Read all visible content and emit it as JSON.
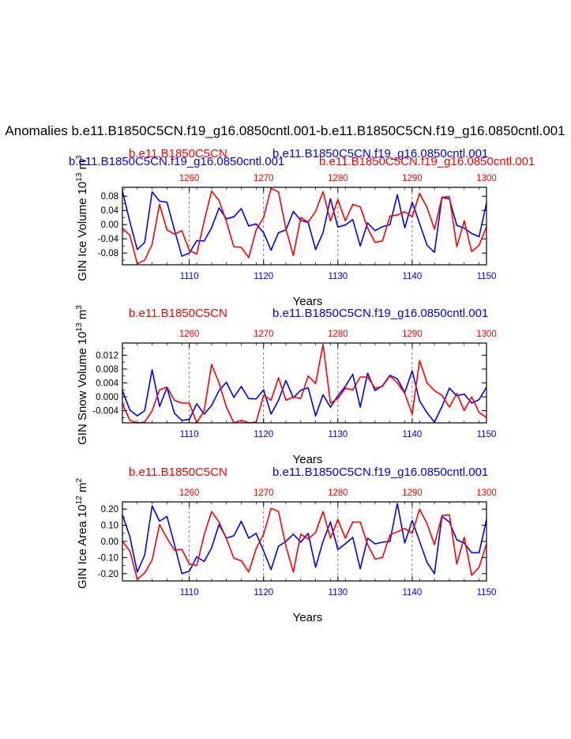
{
  "main_title": "Anomalies b.e11.B1850C5CN.f19_g16.0850cntl.001-b.e11.B1850C5CN.f19_g16.0850cntl.001",
  "colors": {
    "case1": "#0000ff",
    "case2": "#ff0000",
    "axis": "#000000",
    "grid": "#555555"
  },
  "chart_data": [
    {
      "type": "line",
      "panel_id": "ice-volume",
      "ylabel": "GIN Ice Volume 10",
      "ylabel_exp": "13",
      "ylabel_unit": " m",
      "ylabel_unit_exp": "3",
      "xlabel": "Years",
      "top_label_blue": "b.e11.B1850C5CN.f19_g16.0850cntl.001",
      "top_label_red": "b.e11.B1850C5CN.f19_g16.0850cntl.001",
      "top_label_red_short": "b.e11.B1850C5CN",
      "top_label_blue_right": "b.e11.B1850C5CN.f19_g16.0850cntl.001",
      "ylim": [
        -0.113,
        0.105
      ],
      "yticks": [
        0.08,
        0.04,
        0.0,
        -0.04,
        -0.08
      ],
      "ytick_labels": [
        "0.08",
        "0.04",
        "0.00",
        "-0.04",
        "-0.08"
      ],
      "bottom_axis": {
        "xlim": [
          1101,
          1150
        ],
        "ticks": [
          1110,
          1120,
          1130,
          1140,
          1150
        ],
        "labels": [
          "1110",
          "1120",
          "1130",
          "1140",
          "1150"
        ]
      },
      "top_axis": {
        "xlim": [
          1251,
          1300
        ],
        "ticks": [
          1260,
          1270,
          1280,
          1290,
          1300
        ],
        "labels": [
          "1260",
          "1270",
          "1280",
          "1290",
          "1300"
        ]
      },
      "gridlines_x": [
        1110,
        1120,
        1130,
        1140
      ],
      "series": [
        {
          "name": "b.e11.B1850C5CN.f19_g16.0850cntl.001",
          "color": "blue",
          "axis": "bottom",
          "x": [
            1101,
            1102,
            1103,
            1104,
            1105,
            1106,
            1107,
            1108,
            1109,
            1110,
            1111,
            1112,
            1113,
            1114,
            1115,
            1116,
            1117,
            1118,
            1119,
            1120,
            1121,
            1122,
            1123,
            1124,
            1125,
            1126,
            1127,
            1128,
            1129,
            1130,
            1131,
            1132,
            1133,
            1134,
            1135,
            1136,
            1137,
            1138,
            1139,
            1140,
            1141,
            1142,
            1143,
            1144,
            1145,
            1146,
            1147,
            1148,
            1149,
            1150
          ],
          "values": [
            0.095,
            0.008,
            -0.07,
            -0.05,
            0.092,
            0.066,
            0.063,
            -0.015,
            -0.089,
            -0.08,
            -0.045,
            -0.046,
            -0.009,
            0.047,
            0.016,
            0.022,
            0.045,
            -0.004,
            0.002,
            -0.023,
            -0.072,
            -0.023,
            -0.015,
            0.037,
            0.012,
            0.006,
            -0.07,
            -0.023,
            0.073,
            -0.007,
            -0.001,
            0.014,
            -0.06,
            0.005,
            -0.017,
            -0.006,
            0.0,
            0.084,
            -0.009,
            0.063,
            0.003,
            -0.058,
            -0.078,
            0.077,
            0.072,
            -0.002,
            -0.01,
            -0.025,
            -0.034,
            0.061
          ]
        },
        {
          "name": "b.e11.B1850C5CN.f19_g16.0850cntl.001",
          "color": "red",
          "axis": "top",
          "x": [
            1251,
            1252,
            1253,
            1254,
            1255,
            1256,
            1257,
            1258,
            1259,
            1260,
            1261,
            1262,
            1263,
            1264,
            1265,
            1266,
            1267,
            1268,
            1269,
            1270,
            1271,
            1272,
            1273,
            1274,
            1275,
            1276,
            1277,
            1278,
            1279,
            1280,
            1281,
            1282,
            1283,
            1284,
            1285,
            1286,
            1287,
            1288,
            1289,
            1290,
            1291,
            1292,
            1293,
            1294,
            1295,
            1296,
            1297,
            1298,
            1299,
            1300
          ],
          "values": [
            -0.01,
            -0.03,
            -0.11,
            -0.1,
            -0.055,
            0.057,
            -0.015,
            -0.027,
            -0.017,
            -0.073,
            -0.083,
            0.01,
            0.094,
            0.068,
            0.008,
            -0.062,
            -0.064,
            -0.093,
            -0.015,
            0.02,
            0.102,
            0.092,
            -0.012,
            -0.087,
            0.02,
            0.007,
            0.037,
            0.093,
            0.01,
            0.07,
            0.011,
            0.057,
            0.05,
            -0.01,
            -0.05,
            -0.046,
            0.024,
            0.027,
            0.036,
            0.022,
            0.088,
            0.048,
            -0.013,
            0.077,
            0.079,
            -0.062,
            0.011,
            -0.076,
            -0.058,
            -0.006
          ]
        }
      ]
    },
    {
      "type": "line",
      "panel_id": "snow-volume",
      "ylabel": "GIN Snow Volume 10",
      "ylabel_exp": "13",
      "ylabel_unit": " m",
      "ylabel_unit_exp": "3",
      "xlabel": "Years",
      "top_label_blue": "b.e11.B1850C5CN.f19_g16.0850cntl.001",
      "top_label_red": "b.e11.B1850C5CN.f19_g16.0850cntl.001",
      "top_label_red_short": "b.e11.B1850C5CN",
      "top_label_blue_right": "b.e11.B1850C5CN.f19_g16.0850cntl.001",
      "ylim": [
        -0.0075,
        0.0155
      ],
      "yticks": [
        0.012,
        0.008,
        0.004,
        0.0,
        -0.004
      ],
      "ytick_labels": [
        "0.012",
        "0.008",
        "0.004",
        "0.000",
        "-0.004"
      ],
      "bottom_axis": {
        "xlim": [
          1101,
          1150
        ],
        "ticks": [
          1110,
          1120,
          1130,
          1140,
          1150
        ],
        "labels": [
          "1110",
          "1120",
          "1130",
          "1140",
          "1150"
        ]
      },
      "top_axis": {
        "xlim": [
          1251,
          1300
        ],
        "ticks": [
          1260,
          1270,
          1280,
          1290,
          1300
        ],
        "labels": [
          "1260",
          "1270",
          "1280",
          "1290",
          "1300"
        ]
      },
      "gridlines_x": [
        1110,
        1120,
        1130,
        1140
      ],
      "series": [
        {
          "name": "b.e11.B1850C5CN.f19_g16.0850cntl.001",
          "color": "blue",
          "axis": "bottom",
          "x": [
            1101,
            1102,
            1103,
            1104,
            1105,
            1106,
            1107,
            1108,
            1109,
            1110,
            1111,
            1112,
            1113,
            1114,
            1115,
            1116,
            1117,
            1118,
            1119,
            1120,
            1121,
            1122,
            1123,
            1124,
            1125,
            1126,
            1127,
            1128,
            1129,
            1130,
            1131,
            1132,
            1133,
            1134,
            1135,
            1136,
            1137,
            1138,
            1139,
            1140,
            1141,
            1142,
            1143,
            1144,
            1145,
            1146,
            1147,
            1148,
            1149,
            1150
          ],
          "values": [
            0.0018,
            -0.0038,
            -0.0055,
            -0.004,
            0.0078,
            -0.0028,
            0.0026,
            -0.0048,
            -0.0068,
            -0.0065,
            -0.002,
            -0.005,
            -0.0025,
            0.0018,
            0.0042,
            -0.0002,
            0.003,
            -0.0005,
            -0.0006,
            0.002,
            -0.005,
            -0.001,
            0.0047,
            -0.0003,
            0.0019,
            0.0026,
            -0.0055,
            0.0006,
            -0.003,
            0.0003,
            0.003,
            0.0065,
            -0.003,
            0.0068,
            0.0018,
            0.0032,
            0.0062,
            0.0052,
            0.0012,
            0.0075,
            -0.0012,
            -0.0046,
            -0.0073,
            -0.0028,
            0.0025,
            0.0003,
            0.0008,
            -0.0018,
            -0.0008,
            0.0028
          ]
        },
        {
          "name": "b.e11.B1850C5CN.f19_g16.0850cntl.001",
          "color": "red",
          "axis": "top",
          "x": [
            1251,
            1252,
            1253,
            1254,
            1255,
            1256,
            1257,
            1258,
            1259,
            1260,
            1261,
            1262,
            1263,
            1264,
            1265,
            1266,
            1267,
            1268,
            1269,
            1270,
            1271,
            1272,
            1273,
            1274,
            1275,
            1276,
            1277,
            1278,
            1279,
            1280,
            1281,
            1282,
            1283,
            1284,
            1285,
            1286,
            1287,
            1288,
            1289,
            1290,
            1291,
            1292,
            1293,
            1294,
            1295,
            1296,
            1297,
            1298,
            1299,
            1300
          ],
          "values": [
            -0.002,
            -0.0068,
            -0.0075,
            -0.0073,
            -0.004,
            0.002,
            0.0028,
            -0.001,
            -0.0018,
            -0.0018,
            -0.0075,
            -0.004,
            0.0093,
            0.004,
            -0.003,
            -0.0075,
            -0.0068,
            -0.0075,
            -0.0073,
            0.0005,
            -0.001,
            0.0055,
            -0.001,
            0.0,
            -0.0005,
            0.006,
            0.0038,
            0.0151,
            -0.0018,
            -0.0005,
            0.0025,
            0.002,
            0.0057,
            0.0057,
            0.0025,
            0.003,
            0.006,
            0.004,
            0.001,
            -0.005,
            0.0105,
            0.004,
            0.0018,
            0.0004,
            -0.003,
            0.001,
            -0.004,
            0.0,
            -0.0045,
            -0.006
          ]
        }
      ]
    },
    {
      "type": "line",
      "panel_id": "ice-area",
      "ylabel": "GIN Ice Area 10",
      "ylabel_exp": "12",
      "ylabel_unit": " m",
      "ylabel_unit_exp": "2",
      "xlabel": "Years",
      "top_label_blue": "b.e11.B1850C5CN.f19_g16.0850cntl.001",
      "top_label_red": "b.e11.B1850C5CN.f19_g16.0850cntl.001",
      "top_label_red_short": "b.e11.B1850C5CN",
      "top_label_blue_right": "b.e11.B1850C5CN.f19_g16.0850cntl.001",
      "ylim": [
        -0.245,
        0.245
      ],
      "yticks": [
        0.2,
        0.1,
        0.0,
        -0.1,
        -0.2
      ],
      "ytick_labels": [
        "0.20",
        "0.10",
        "0.00",
        "-0.10",
        "-0.20"
      ],
      "bottom_axis": {
        "xlim": [
          1101,
          1150
        ],
        "ticks": [
          1110,
          1120,
          1130,
          1140,
          1150
        ],
        "labels": [
          "1110",
          "1120",
          "1130",
          "1140",
          "1150"
        ]
      },
      "top_axis": {
        "xlim": [
          1251,
          1300
        ],
        "ticks": [
          1260,
          1270,
          1280,
          1290,
          1300
        ],
        "labels": [
          "1260",
          "1270",
          "1280",
          "1290",
          "1300"
        ]
      },
      "gridlines_x": [
        1110,
        1120,
        1130,
        1140
      ],
      "series": [
        {
          "name": "b.e11.B1850C5CN.f19_g16.0850cntl.001",
          "color": "blue",
          "axis": "bottom",
          "x": [
            1101,
            1102,
            1103,
            1104,
            1105,
            1106,
            1107,
            1108,
            1109,
            1110,
            1111,
            1112,
            1113,
            1114,
            1115,
            1116,
            1117,
            1118,
            1119,
            1120,
            1121,
            1122,
            1123,
            1124,
            1125,
            1126,
            1127,
            1128,
            1129,
            1130,
            1131,
            1132,
            1133,
            1134,
            1135,
            1136,
            1137,
            1138,
            1139,
            1140,
            1141,
            1142,
            1143,
            1144,
            1145,
            1146,
            1147,
            1148,
            1149,
            1150
          ],
          "values": [
            0.165,
            0.03,
            -0.19,
            -0.085,
            0.22,
            0.125,
            0.155,
            -0.02,
            -0.2,
            -0.185,
            -0.095,
            -0.125,
            -0.04,
            0.105,
            0.02,
            0.035,
            0.125,
            0.02,
            0.05,
            -0.06,
            -0.175,
            -0.03,
            0.0,
            0.045,
            -0.005,
            0.05,
            -0.16,
            0.0,
            0.12,
            -0.05,
            -0.015,
            0.025,
            -0.17,
            0.02,
            -0.015,
            -0.005,
            0.0,
            0.235,
            -0.01,
            0.13,
            0.0,
            -0.13,
            -0.2,
            0.155,
            0.12,
            0.01,
            -0.01,
            -0.07,
            -0.07,
            0.135
          ]
        },
        {
          "name": "b.e11.B1850C5CN.f19_g16.0850cntl.001",
          "color": "red",
          "axis": "top",
          "x": [
            1251,
            1252,
            1253,
            1254,
            1255,
            1256,
            1257,
            1258,
            1259,
            1260,
            1261,
            1262,
            1263,
            1264,
            1265,
            1266,
            1267,
            1268,
            1269,
            1270,
            1271,
            1272,
            1273,
            1274,
            1275,
            1276,
            1277,
            1278,
            1279,
            1280,
            1281,
            1282,
            1283,
            1284,
            1285,
            1286,
            1287,
            1288,
            1289,
            1290,
            1291,
            1292,
            1293,
            1294,
            1295,
            1296,
            1297,
            1298,
            1299,
            1300
          ],
          "values": [
            0.0,
            -0.06,
            -0.235,
            -0.195,
            -0.115,
            0.105,
            0.02,
            -0.055,
            -0.05,
            -0.14,
            -0.15,
            0.04,
            0.185,
            0.12,
            0.015,
            -0.105,
            -0.12,
            -0.19,
            -0.045,
            0.045,
            0.205,
            0.185,
            -0.03,
            -0.19,
            0.045,
            0.015,
            0.055,
            0.185,
            0.02,
            0.135,
            0.02,
            0.12,
            0.12,
            -0.02,
            -0.11,
            -0.1,
            0.04,
            0.06,
            0.08,
            0.05,
            0.2,
            0.11,
            -0.02,
            0.16,
            0.165,
            -0.14,
            0.025,
            -0.21,
            -0.16,
            -0.015
          ]
        }
      ]
    }
  ]
}
